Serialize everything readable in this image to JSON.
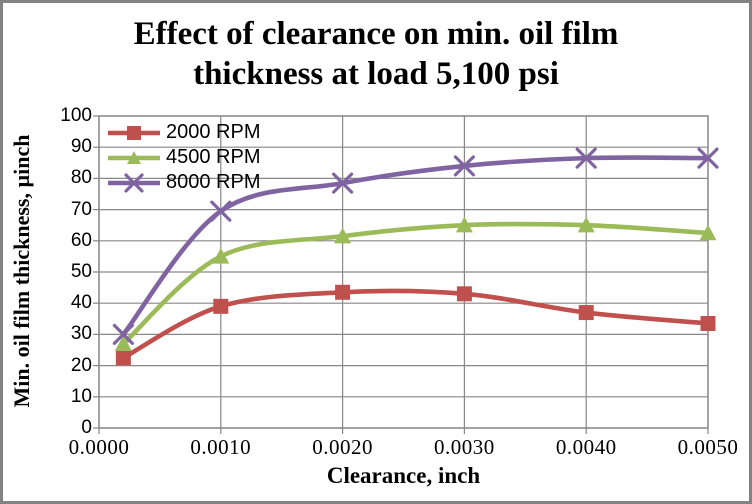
{
  "window": {
    "background": "#ffffff",
    "frame_border_color": "#838383"
  },
  "chart_data": {
    "type": "line",
    "title": "Effect of clearance on min. oil film thickness at load 5,100 psi",
    "title_lines": [
      "Effect of clearance on min. oil film",
      "thickness at load 5,100 psi"
    ],
    "xlabel": "Clearance, inch",
    "ylabel": "Min. oil film thickness, µinch",
    "xlim": [
      0,
      0.005
    ],
    "ylim": [
      0,
      100
    ],
    "x_tick_values": [
      0,
      0.001,
      0.002,
      0.003,
      0.004,
      0.005
    ],
    "x_tick_labels": [
      "0.0000",
      "0.0010",
      "0.0020",
      "0.0030",
      "0.0040",
      "0.0050"
    ],
    "y_tick_values": [
      0,
      10,
      20,
      30,
      40,
      50,
      60,
      70,
      80,
      90,
      100
    ],
    "y_tick_labels": [
      "0",
      "10",
      "20",
      "30",
      "40",
      "50",
      "60",
      "70",
      "80",
      "90",
      "100"
    ],
    "grid": true,
    "line_style": "smooth",
    "legend_position": "top-left",
    "x": [
      0.0002,
      0.001,
      0.002,
      0.003,
      0.004,
      0.005
    ],
    "series": [
      {
        "name": "2000 RPM",
        "color": "#C0504D",
        "marker": "square",
        "values": [
          22.5,
          39,
          43.5,
          43,
          37,
          33.5
        ]
      },
      {
        "name": "4500 RPM",
        "color": "#9BBB59",
        "marker": "triangle",
        "values": [
          27,
          55,
          61.5,
          65,
          65,
          62.5
        ]
      },
      {
        "name": "8000 RPM",
        "color": "#8064A2",
        "marker": "x",
        "values": [
          30,
          69.5,
          78.5,
          84,
          86.5,
          86.5
        ]
      }
    ],
    "colors": {
      "gridline": "#878787",
      "axis": "#878787",
      "text": "#000000"
    }
  }
}
